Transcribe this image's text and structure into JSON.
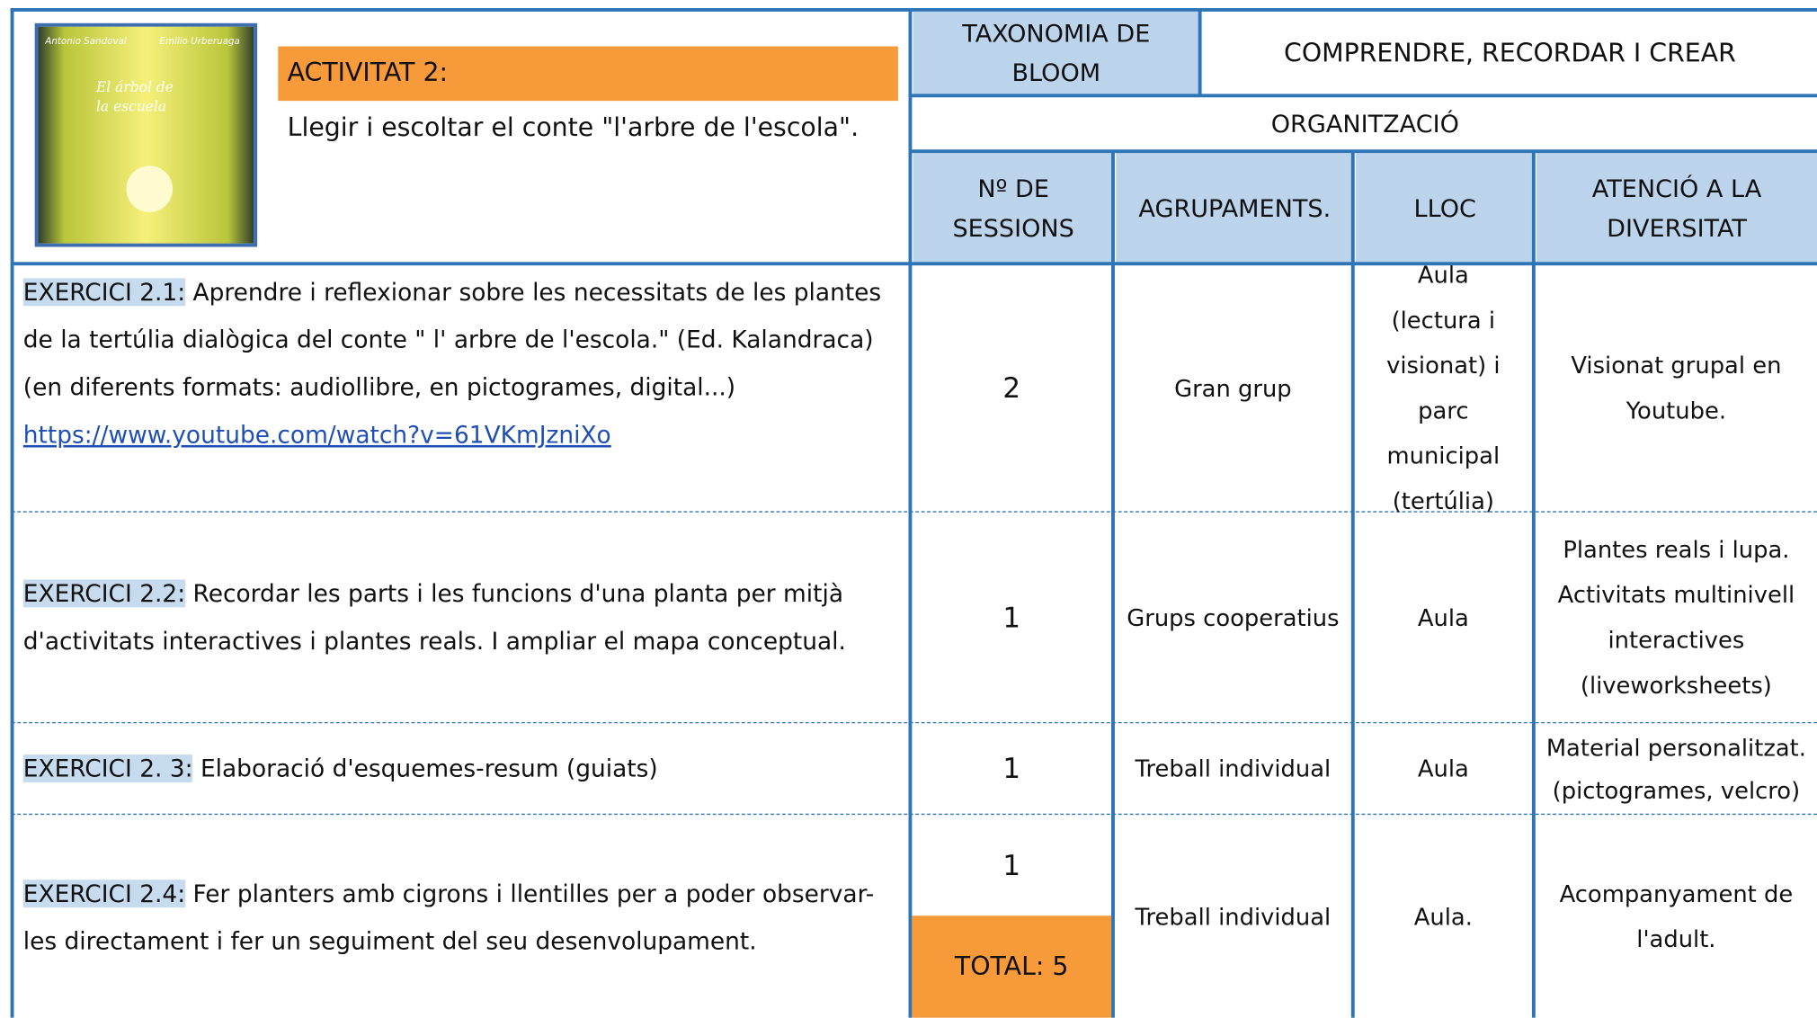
{
  "header": {
    "cover": {
      "authors": [
        "Antonio Sandoval",
        "Emilio Urberuaga"
      ],
      "title": "El árbol de la escuela"
    },
    "activity": "ACTIVITAT 2:",
    "description": "Llegir i escoltar el conte \"l'arbre de l'escola\"."
  },
  "taxonomy": {
    "label": "TAXONOMIA DE BLOOM",
    "value": "COMPRENDRE, RECORDAR I CREAR"
  },
  "organization": "ORGANITZACIÓ",
  "columns": [
    "Nº DE SESSIONS",
    "AGRUPAMENTS.",
    "LLOC",
    "ATENCIÓ A LA DIVERSITAT"
  ],
  "rows": [
    {
      "label": "EXERCICI 2.1:",
      "text": "Aprendre i reflexionar sobre les necessitats de les plantes de la tertúlia dialògica del conte \" l' arbre de l'escola.\" (Ed. Kalandraca) (en diferents formats: audiollibre, en pictogrames, digital...)",
      "link": "https://www.youtube.com/watch?v=61VKmJzniXo",
      "sessions": "2",
      "grouping": "Gran grup",
      "place": "Aula (lectura i visionat) i parc municipal (tertúlia)",
      "diversity": "Visionat grupal en Youtube."
    },
    {
      "label": "EXERCICI 2.2:",
      "text": "Recordar les parts i les funcions d'una planta per mitjà d'activitats interactives i plantes reals.  I ampliar el mapa conceptual.",
      "sessions": "1",
      "grouping": "Grups cooperatius",
      "place": "Aula",
      "diversity": "Plantes reals i lupa. Activitats multinivell interactives (liveworksheets)"
    },
    {
      "label": "EXERCICI 2. 3:",
      "text": "Elaboració d'esquemes-resum (guiats)",
      "sessions": "1",
      "grouping": "Treball individual",
      "place": "Aula",
      "diversity": "Material personalitzat. (pictogrames, velcro)"
    },
    {
      "label": "EXERCICI 2.4:",
      "text": "Fer planters amb cigrons i llentilles per a poder observar-les directament i fer un seguiment del seu desenvolupament.",
      "sessions": "1",
      "grouping": "Treball individual",
      "place": "Aula.",
      "diversity": "Acompanyament de l'adult."
    }
  ],
  "total": "TOTAL: 5"
}
